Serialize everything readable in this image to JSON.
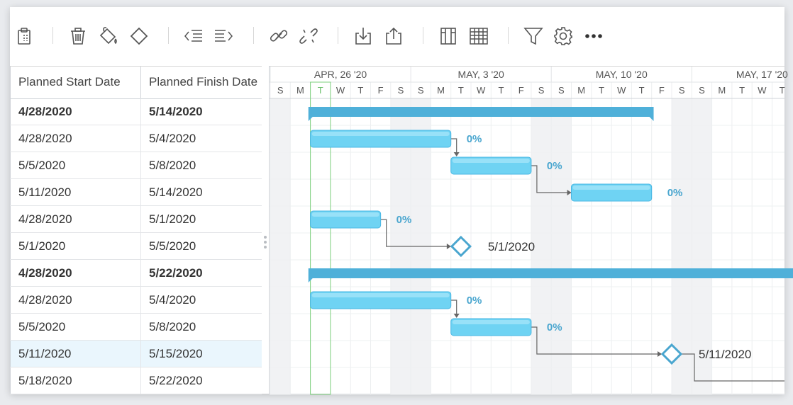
{
  "toolbar": {
    "icons": [
      {
        "name": "clipboard-paste-icon"
      },
      {
        "name": "trash-icon"
      },
      {
        "name": "paint-bucket-icon"
      },
      {
        "name": "milestone-diamond-icon"
      },
      {
        "name": "outdent-icon"
      },
      {
        "name": "indent-icon"
      },
      {
        "name": "link-icon"
      },
      {
        "name": "unlink-icon"
      },
      {
        "name": "import-icon"
      },
      {
        "name": "export-icon"
      },
      {
        "name": "columns-icon"
      },
      {
        "name": "grid-table-icon"
      },
      {
        "name": "filter-icon"
      },
      {
        "name": "gear-icon"
      },
      {
        "name": "more-icon"
      }
    ]
  },
  "grid": {
    "headers": [
      "Planned Start Date",
      "Planned Finish Date"
    ],
    "rows": [
      {
        "start": "4/28/2020",
        "finish": "5/14/2020",
        "bold": true
      },
      {
        "start": "4/28/2020",
        "finish": "5/4/2020",
        "bold": false
      },
      {
        "start": "5/5/2020",
        "finish": "5/8/2020",
        "bold": false
      },
      {
        "start": "5/11/2020",
        "finish": "5/14/2020",
        "bold": false
      },
      {
        "start": "4/28/2020",
        "finish": "5/1/2020",
        "bold": false
      },
      {
        "start": "5/1/2020",
        "finish": "5/5/2020",
        "bold": false
      },
      {
        "start": "4/28/2020",
        "finish": "5/22/2020",
        "bold": true
      },
      {
        "start": "4/28/2020",
        "finish": "5/4/2020",
        "bold": false
      },
      {
        "start": "5/5/2020",
        "finish": "5/8/2020",
        "bold": false
      },
      {
        "start": "5/11/2020",
        "finish": "5/15/2020",
        "bold": false,
        "selected": true
      },
      {
        "start": "5/18/2020",
        "finish": "5/22/2020",
        "bold": false
      }
    ]
  },
  "timeline": {
    "weeks": [
      "APR, 26 '20",
      "MAY, 3 '20",
      "MAY, 10 '20",
      "MAY, 17 '20"
    ],
    "days": [
      "S",
      "M",
      "T",
      "W",
      "T",
      "F",
      "S",
      "S",
      "M",
      "T",
      "W",
      "T",
      "F",
      "S",
      "S",
      "M",
      "T",
      "W",
      "T",
      "F",
      "S",
      "S",
      "M",
      "T",
      "W",
      "T"
    ],
    "today_index": 2
  },
  "colors": {
    "summary_bar": "#4fb0d9",
    "task_bar": "#6fd3f3",
    "task_bar_border": "#4ab7e3",
    "progress_text": "#4aa6cf",
    "weekend_shade": "#f1f2f4",
    "today_line": "#7ed17e",
    "milestone": "#4aa6cf"
  },
  "tasks": [
    {
      "row": 0,
      "type": "summary",
      "start": 1.9,
      "end": 19.1
    },
    {
      "row": 1,
      "type": "task",
      "start": 2,
      "end": 9,
      "progress": "0%"
    },
    {
      "row": 2,
      "type": "task",
      "start": 9,
      "end": 13,
      "progress": "0%"
    },
    {
      "row": 3,
      "type": "task",
      "start": 15,
      "end": 19,
      "progress": "0%"
    },
    {
      "row": 4,
      "type": "task",
      "start": 2,
      "end": 5.5,
      "progress": "0%"
    },
    {
      "row": 5,
      "type": "milestone",
      "at": 9.5,
      "label": "5/1/2020"
    },
    {
      "row": 6,
      "type": "summary",
      "start": 1.9,
      "end": 27
    },
    {
      "row": 7,
      "type": "task",
      "start": 2,
      "end": 9,
      "progress": "0%"
    },
    {
      "row": 8,
      "type": "task",
      "start": 9,
      "end": 13,
      "progress": "0%"
    },
    {
      "row": 9,
      "type": "milestone",
      "at": 20,
      "label": "5/11/2020"
    }
  ],
  "links": [
    {
      "from": 1,
      "to": 2
    },
    {
      "from": 2,
      "to": 3
    },
    {
      "from": 4,
      "to": 5
    },
    {
      "from": 7,
      "to": 8
    },
    {
      "from": 8,
      "to": 9
    },
    {
      "from": 9,
      "to": 10
    }
  ]
}
